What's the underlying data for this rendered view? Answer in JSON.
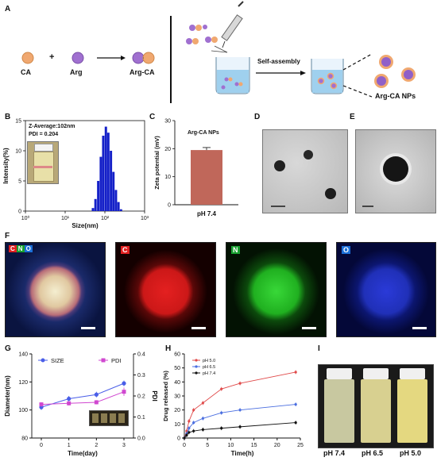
{
  "panels": {
    "A": {
      "letter": "A",
      "ca": "CA",
      "plus": "+",
      "arg": "Arg",
      "argca": "Arg-CA",
      "self_assembly": "Self-assembly",
      "nps": "Arg-CA NPs"
    },
    "B": {
      "letter": "B",
      "z_average": "Z-Average:102nm",
      "pdi": "PDI = 0.204",
      "ylabel": "Intensity(%)",
      "xlabel": "Size(nm)",
      "yticks": [
        "0",
        "5",
        "10",
        "15"
      ],
      "xticks": [
        "10⁰",
        "10¹",
        "10²",
        "10³"
      ]
    },
    "C": {
      "letter": "C",
      "legend": "Arg-CA NPs",
      "ylabel": "Zeta potential (mV)",
      "xlabel": "pH 7.4",
      "yticks": [
        "0",
        "10",
        "20",
        "30"
      ]
    },
    "D": {
      "letter": "D"
    },
    "E": {
      "letter": "E"
    },
    "F": {
      "letter": "F",
      "tags": [
        {
          "t": "C",
          "color": "#e02020"
        },
        {
          "t": "N",
          "color": "#18a030"
        },
        {
          "t": "O",
          "color": "#1b6fd8"
        }
      ],
      "map_c": "C",
      "map_n": "N",
      "map_o": "O"
    },
    "G": {
      "letter": "G",
      "ylabel_left": "Diameter(nm)",
      "ylabel_right": "PDI",
      "xlabel": "Time(day)",
      "legend_size": "SIZE",
      "legend_pdi": "PDI",
      "yticks_left": [
        "80",
        "100",
        "120",
        "140"
      ],
      "yticks_right": [
        "0.0",
        "0.1",
        "0.2",
        "0.3",
        "0.4"
      ],
      "xticks": [
        "0",
        "1",
        "2",
        "3"
      ]
    },
    "H": {
      "letter": "H",
      "ylabel": "Drug released (%)",
      "xlabel": "Time(h)",
      "legend": [
        "pH 5.0",
        "pH 6.5",
        "pH 7.4"
      ],
      "yticks": [
        "0",
        "10",
        "20",
        "30",
        "40",
        "50",
        "60"
      ],
      "xticks": [
        "0",
        "5",
        "10",
        "15",
        "20",
        "25"
      ]
    },
    "I": {
      "letter": "I",
      "labels": [
        "pH 7.4",
        "pH 6.5",
        "pH 5.0"
      ]
    }
  },
  "chart_data": [
    {
      "panel": "B",
      "type": "bar",
      "xlabel": "Size(nm)",
      "ylabel": "Intensity(%)",
      "xscale": "log",
      "ylim": [
        0,
        15
      ],
      "x": [
        50,
        58,
        68,
        79,
        91,
        106,
        122,
        142,
        164,
        190,
        220,
        255
      ],
      "values": [
        0.5,
        2,
        5,
        9,
        12.5,
        14,
        13,
        10,
        6.5,
        3.5,
        1.5,
        0.3
      ],
      "color": "#1420c8"
    },
    {
      "panel": "C",
      "type": "bar",
      "categories": [
        "pH 7.4"
      ],
      "values": [
        19.5
      ],
      "error": [
        0.9
      ],
      "ylim": [
        0,
        30
      ],
      "color": "#c0675a",
      "ylabel": "Zeta potential (mV)"
    },
    {
      "panel": "G",
      "type": "line",
      "x": [
        0,
        1,
        2,
        3
      ],
      "xlabel": "Time(day)",
      "series": [
        {
          "name": "SIZE",
          "axis": "left",
          "values": [
            102,
            108,
            111,
            119
          ],
          "error": [
            2,
            2,
            2,
            2
          ],
          "color": "#4a5ee8"
        },
        {
          "name": "PDI",
          "axis": "right",
          "values": [
            0.16,
            0.165,
            0.17,
            0.22
          ],
          "error": [
            0.01,
            0.01,
            0.01,
            0.02
          ],
          "color": "#d048d0"
        }
      ],
      "ylim_left": [
        80,
        140
      ],
      "ylim_right": [
        0,
        0.4
      ]
    },
    {
      "panel": "H",
      "type": "line",
      "xlabel": "Time(h)",
      "ylabel": "Drug released (%)",
      "ylim": [
        0,
        60
      ],
      "xlim": [
        0,
        25
      ],
      "series": [
        {
          "name": "pH 5.0",
          "color": "#e04a4a",
          "x": [
            0,
            0.5,
            1,
            2,
            4,
            8,
            12,
            24
          ],
          "values": [
            0,
            5,
            12,
            20,
            25,
            35,
            39,
            47
          ]
        },
        {
          "name": "pH 6.5",
          "color": "#4a6ee0",
          "x": [
            0,
            0.5,
            1,
            2,
            4,
            8,
            12,
            24
          ],
          "values": [
            0,
            3,
            7,
            11,
            14,
            18,
            20,
            24
          ]
        },
        {
          "name": "pH 7.4",
          "color": "#111111",
          "x": [
            0,
            0.5,
            1,
            2,
            4,
            8,
            12,
            24
          ],
          "values": [
            0,
            2,
            4,
            5,
            6,
            7,
            8,
            11
          ]
        }
      ]
    }
  ]
}
